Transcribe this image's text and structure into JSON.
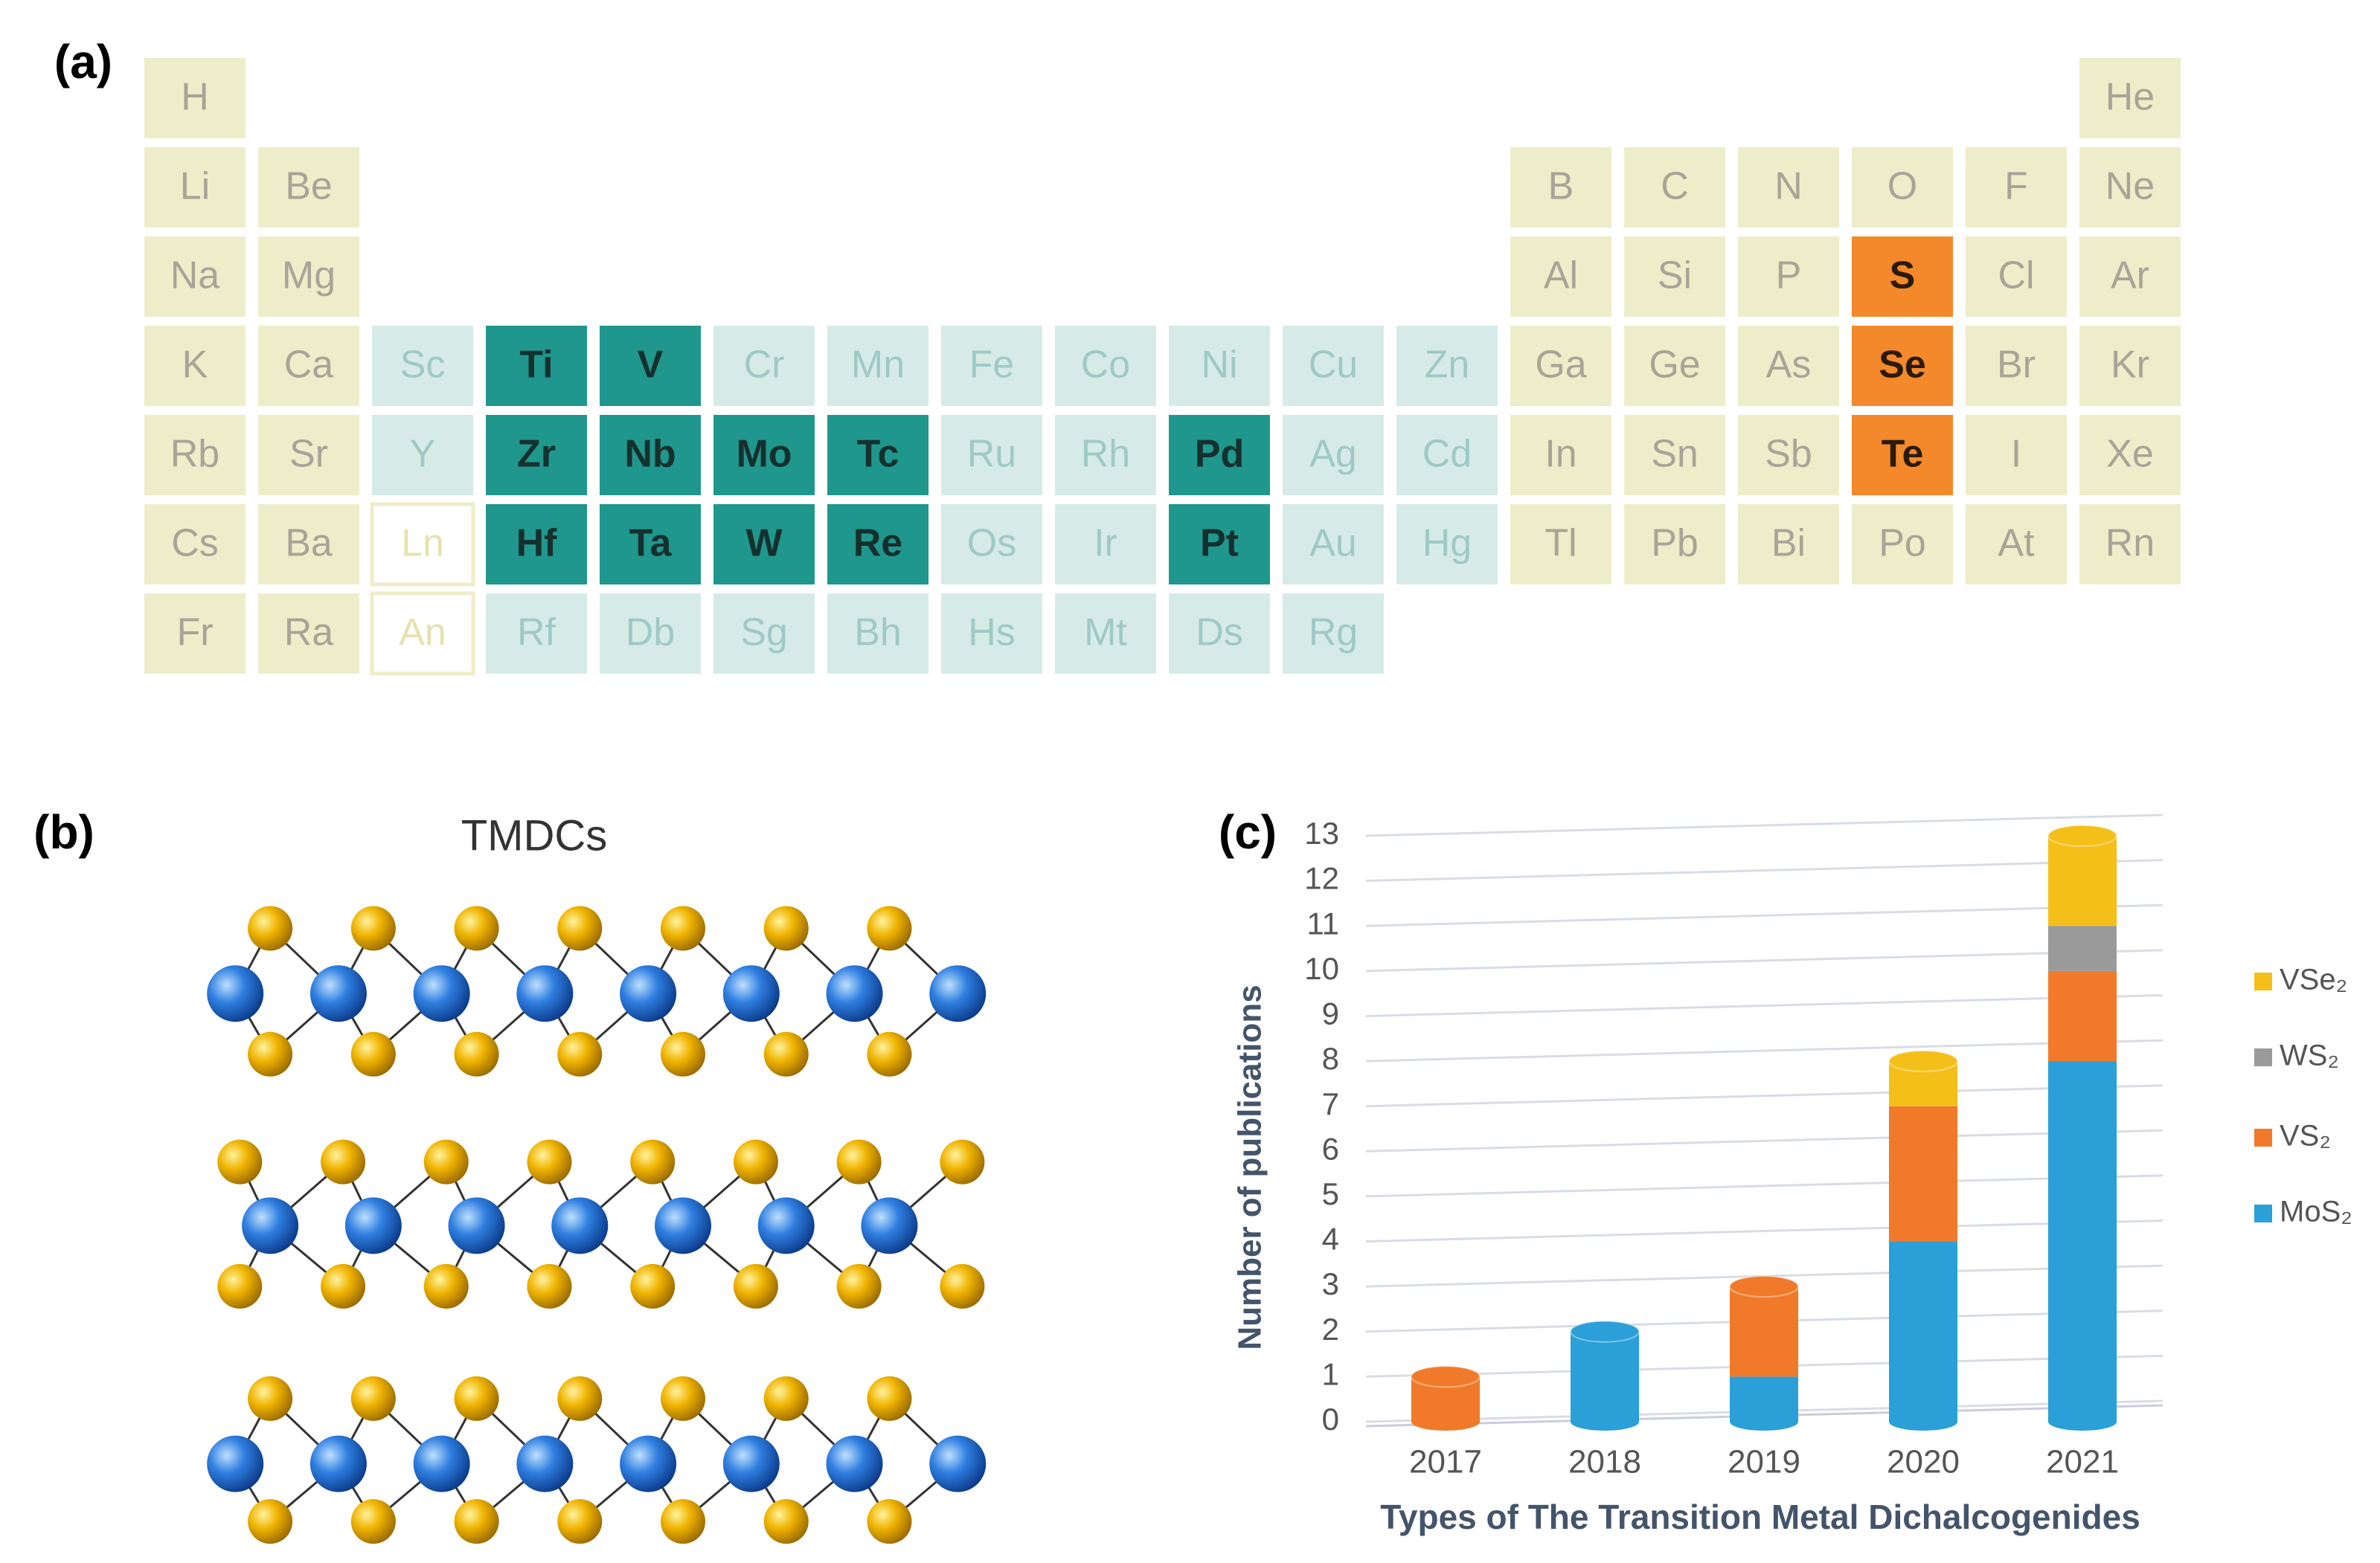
{
  "panel_labels": [
    "(a)",
    "(b)",
    "(c)"
  ],
  "periodic_table": {
    "rows": [
      [
        {
          "s": "H",
          "fill": "#eeedca",
          "ink": "#a6a597"
        },
        null,
        null,
        null,
        null,
        null,
        null,
        null,
        null,
        null,
        null,
        null,
        null,
        null,
        null,
        null,
        null,
        {
          "s": "He",
          "fill": "#eeedca",
          "ink": "#a6a597"
        }
      ],
      [
        {
          "s": "Li",
          "fill": "#eeedca",
          "ink": "#a6a597"
        },
        {
          "s": "Be",
          "fill": "#eeedca",
          "ink": "#a6a597"
        },
        null,
        null,
        null,
        null,
        null,
        null,
        null,
        null,
        null,
        null,
        {
          "s": "B",
          "fill": "#eeedca",
          "ink": "#a6a597"
        },
        {
          "s": "C",
          "fill": "#eeedca",
          "ink": "#a6a597"
        },
        {
          "s": "N",
          "fill": "#eeedca",
          "ink": "#a6a597"
        },
        {
          "s": "O",
          "fill": "#eeedca",
          "ink": "#a6a597"
        },
        {
          "s": "F",
          "fill": "#eeedca",
          "ink": "#a6a597"
        },
        {
          "s": "Ne",
          "fill": "#eeedca",
          "ink": "#a6a597"
        }
      ],
      [
        {
          "s": "Na",
          "fill": "#eeedca",
          "ink": "#a6a597"
        },
        {
          "s": "Mg",
          "fill": "#eeedca",
          "ink": "#a6a597"
        },
        null,
        null,
        null,
        null,
        null,
        null,
        null,
        null,
        null,
        null,
        {
          "s": "Al",
          "fill": "#eeedca",
          "ink": "#a6a597"
        },
        {
          "s": "Si",
          "fill": "#eeedca",
          "ink": "#a6a597"
        },
        {
          "s": "P",
          "fill": "#eeedca",
          "ink": "#a6a597"
        },
        {
          "s": "S",
          "fill": "#f3892a",
          "ink": "#2a1a0a"
        },
        {
          "s": "Cl",
          "fill": "#eeedca",
          "ink": "#a6a597"
        },
        {
          "s": "Ar",
          "fill": "#eeedca",
          "ink": "#a6a597"
        }
      ],
      [
        {
          "s": "K",
          "fill": "#eeedca",
          "ink": "#a6a597"
        },
        {
          "s": "Ca",
          "fill": "#eeedca",
          "ink": "#a6a597"
        },
        {
          "s": "Sc",
          "fill": "#d6ebe8",
          "ink": "#9fc9c5"
        },
        {
          "s": "Ti",
          "fill": "#1f978d",
          "ink": "#16302e"
        },
        {
          "s": "V",
          "fill": "#1f978d",
          "ink": "#16302e"
        },
        {
          "s": "Cr",
          "fill": "#d6ebe8",
          "ink": "#9fc9c5"
        },
        {
          "s": "Mn",
          "fill": "#d6ebe8",
          "ink": "#9fc9c5"
        },
        {
          "s": "Fe",
          "fill": "#d6ebe8",
          "ink": "#9fc9c5"
        },
        {
          "s": "Co",
          "fill": "#d6ebe8",
          "ink": "#9fc9c5"
        },
        {
          "s": "Ni",
          "fill": "#d6ebe8",
          "ink": "#9fc9c5"
        },
        {
          "s": "Cu",
          "fill": "#d6ebe8",
          "ink": "#9fc9c5"
        },
        {
          "s": "Zn",
          "fill": "#d6ebe8",
          "ink": "#9fc9c5"
        },
        {
          "s": "Ga",
          "fill": "#eeedca",
          "ink": "#a6a597"
        },
        {
          "s": "Ge",
          "fill": "#eeedca",
          "ink": "#a6a597"
        },
        {
          "s": "As",
          "fill": "#eeedca",
          "ink": "#a6a597"
        },
        {
          "s": "Se",
          "fill": "#f3892a",
          "ink": "#2a1a0a"
        },
        {
          "s": "Br",
          "fill": "#eeedca",
          "ink": "#a6a597"
        },
        {
          "s": "Kr",
          "fill": "#eeedca",
          "ink": "#a6a597"
        }
      ],
      [
        {
          "s": "Rb",
          "fill": "#eeedca",
          "ink": "#a6a597"
        },
        {
          "s": "Sr",
          "fill": "#eeedca",
          "ink": "#a6a597"
        },
        {
          "s": "Y",
          "fill": "#d6ebe8",
          "ink": "#9fc9c5"
        },
        {
          "s": "Zr",
          "fill": "#1f978d",
          "ink": "#16302e"
        },
        {
          "s": "Nb",
          "fill": "#1f978d",
          "ink": "#16302e"
        },
        {
          "s": "Mo",
          "fill": "#1f978d",
          "ink": "#16302e"
        },
        {
          "s": "Tc",
          "fill": "#1f978d",
          "ink": "#16302e"
        },
        {
          "s": "Ru",
          "fill": "#d6ebe8",
          "ink": "#9fc9c5"
        },
        {
          "s": "Rh",
          "fill": "#d6ebe8",
          "ink": "#9fc9c5"
        },
        {
          "s": "Pd",
          "fill": "#1f978d",
          "ink": "#16302e"
        },
        {
          "s": "Ag",
          "fill": "#d6ebe8",
          "ink": "#9fc9c5"
        },
        {
          "s": "Cd",
          "fill": "#d6ebe8",
          "ink": "#9fc9c5"
        },
        {
          "s": "In",
          "fill": "#eeedca",
          "ink": "#a6a597"
        },
        {
          "s": "Sn",
          "fill": "#eeedca",
          "ink": "#a6a597"
        },
        {
          "s": "Sb",
          "fill": "#eeedca",
          "ink": "#a6a597"
        },
        {
          "s": "Te",
          "fill": "#f3892a",
          "ink": "#2a1a0a"
        },
        {
          "s": "I",
          "fill": "#eeedca",
          "ink": "#a6a597"
        },
        {
          "s": "Xe",
          "fill": "#eeedca",
          "ink": "#a6a597"
        }
      ],
      [
        {
          "s": "Cs",
          "fill": "#eeedca",
          "ink": "#a6a597"
        },
        {
          "s": "Ba",
          "fill": "#eeedca",
          "ink": "#a6a597"
        },
        {
          "s": "Ln",
          "fill": "#ffffff",
          "ink": "#e6e2b0",
          "border": "#eeedca"
        },
        {
          "s": "Hf",
          "fill": "#1f978d",
          "ink": "#16302e"
        },
        {
          "s": "Ta",
          "fill": "#1f978d",
          "ink": "#16302e"
        },
        {
          "s": "W",
          "fill": "#1f978d",
          "ink": "#16302e"
        },
        {
          "s": "Re",
          "fill": "#1f978d",
          "ink": "#16302e"
        },
        {
          "s": "Os",
          "fill": "#d6ebe8",
          "ink": "#9fc9c5"
        },
        {
          "s": "Ir",
          "fill": "#d6ebe8",
          "ink": "#9fc9c5"
        },
        {
          "s": "Pt",
          "fill": "#1f978d",
          "ink": "#16302e"
        },
        {
          "s": "Au",
          "fill": "#d6ebe8",
          "ink": "#9fc9c5"
        },
        {
          "s": "Hg",
          "fill": "#d6ebe8",
          "ink": "#9fc9c5"
        },
        {
          "s": "Tl",
          "fill": "#eeedca",
          "ink": "#a6a597"
        },
        {
          "s": "Pb",
          "fill": "#eeedca",
          "ink": "#a6a597"
        },
        {
          "s": "Bi",
          "fill": "#eeedca",
          "ink": "#a6a597"
        },
        {
          "s": "Po",
          "fill": "#eeedca",
          "ink": "#a6a597"
        },
        {
          "s": "At",
          "fill": "#eeedca",
          "ink": "#a6a597"
        },
        {
          "s": "Rn",
          "fill": "#eeedca",
          "ink": "#a6a597"
        }
      ],
      [
        {
          "s": "Fr",
          "fill": "#eeedca",
          "ink": "#a6a597"
        },
        {
          "s": "Ra",
          "fill": "#eeedca",
          "ink": "#a6a597"
        },
        {
          "s": "An",
          "fill": "#ffffff",
          "ink": "#e6e2b0",
          "border": "#eeedca"
        },
        {
          "s": "Rf",
          "fill": "#d6ebe8",
          "ink": "#9fc9c5"
        },
        {
          "s": "Db",
          "fill": "#d6ebe8",
          "ink": "#9fc9c5"
        },
        {
          "s": "Sg",
          "fill": "#d6ebe8",
          "ink": "#9fc9c5"
        },
        {
          "s": "Bh",
          "fill": "#d6ebe8",
          "ink": "#9fc9c5"
        },
        {
          "s": "Hs",
          "fill": "#d6ebe8",
          "ink": "#9fc9c5"
        },
        {
          "s": "Mt",
          "fill": "#d6ebe8",
          "ink": "#9fc9c5"
        },
        {
          "s": "Ds",
          "fill": "#d6ebe8",
          "ink": "#9fc9c5"
        },
        {
          "s": "Rg",
          "fill": "#d6ebe8",
          "ink": "#9fc9c5"
        },
        null,
        null,
        null,
        null,
        null,
        null,
        null
      ]
    ]
  },
  "structure": {
    "title": "TMDCs"
  },
  "chart_data": {
    "type": "stacked_bar",
    "categories": [
      "2017",
      "2018",
      "2019",
      "2020",
      "2021"
    ],
    "series": [
      {
        "name": "MoS₂",
        "color": "#2a9fd8",
        "values": [
          0,
          2,
          1,
          4,
          8
        ]
      },
      {
        "name": "VS₂",
        "color": "#f07a2a",
        "values": [
          1,
          0,
          2,
          3,
          2
        ]
      },
      {
        "name": "WS₂",
        "color": "#9a9a9a",
        "values": [
          0,
          0,
          0,
          0,
          1
        ]
      },
      {
        "name": "VSe₂",
        "color": "#f5bf1a",
        "values": [
          0,
          0,
          0,
          1,
          2
        ]
      }
    ],
    "ylim": [
      0,
      13
    ],
    "yticks": [
      0,
      1,
      2,
      3,
      4,
      5,
      6,
      7,
      8,
      9,
      10,
      11,
      12,
      13
    ],
    "grid": true,
    "y_label": "Number of publications",
    "x_label": "Types of The Transition Metal Dichalcogenides",
    "legend": "right"
  }
}
